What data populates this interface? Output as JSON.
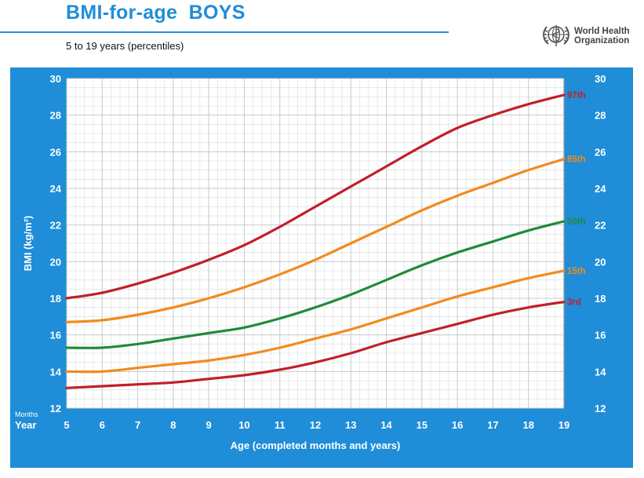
{
  "header": {
    "title": "BMI-for-age  BOYS",
    "subtitle": "5 to 19 years (percentiles)",
    "org_line1": "World Health",
    "org_line2": "Organization"
  },
  "colors": {
    "brand_blue": "#1f8dd8",
    "red": "#c0202a",
    "orange": "#f28a1e",
    "green": "#1e8a3c"
  },
  "chart_data": {
    "type": "line",
    "title": "BMI-for-age BOYS",
    "subtitle": "5 to 19 years (percentiles)",
    "xlabel": "Age (completed months and years)",
    "ylabel": "BMI (kg/m²)",
    "x_unit_top": "Months",
    "x_unit_bottom": "Year",
    "xlim": [
      5,
      19
    ],
    "ylim": [
      12,
      30
    ],
    "x_ticks": [
      5,
      6,
      7,
      8,
      9,
      10,
      11,
      12,
      13,
      14,
      15,
      16,
      17,
      18,
      19
    ],
    "y_ticks": [
      12,
      14,
      16,
      18,
      20,
      22,
      24,
      26,
      28,
      30
    ],
    "grid": true,
    "x": [
      5,
      6,
      7,
      8,
      9,
      10,
      11,
      12,
      13,
      14,
      15,
      16,
      17,
      18,
      19
    ],
    "series": [
      {
        "name": "97th",
        "color": "#c0202a",
        "values": [
          18.0,
          18.3,
          18.8,
          19.4,
          20.1,
          20.9,
          21.9,
          23.0,
          24.1,
          25.2,
          26.3,
          27.3,
          28.0,
          28.6,
          29.1
        ]
      },
      {
        "name": "85th",
        "color": "#f28a1e",
        "values": [
          16.7,
          16.8,
          17.1,
          17.5,
          18.0,
          18.6,
          19.3,
          20.1,
          21.0,
          21.9,
          22.8,
          23.6,
          24.3,
          25.0,
          25.6
        ]
      },
      {
        "name": "50th",
        "color": "#1e8a3c",
        "values": [
          15.3,
          15.3,
          15.5,
          15.8,
          16.1,
          16.4,
          16.9,
          17.5,
          18.2,
          19.0,
          19.8,
          20.5,
          21.1,
          21.7,
          22.2
        ]
      },
      {
        "name": "15th",
        "color": "#f28a1e",
        "values": [
          14.0,
          14.0,
          14.2,
          14.4,
          14.6,
          14.9,
          15.3,
          15.8,
          16.3,
          16.9,
          17.5,
          18.1,
          18.6,
          19.1,
          19.5
        ]
      },
      {
        "name": "3rd",
        "color": "#c0202a",
        "values": [
          13.1,
          13.2,
          13.3,
          13.4,
          13.6,
          13.8,
          14.1,
          14.5,
          15.0,
          15.6,
          16.1,
          16.6,
          17.1,
          17.5,
          17.8
        ]
      }
    ]
  }
}
